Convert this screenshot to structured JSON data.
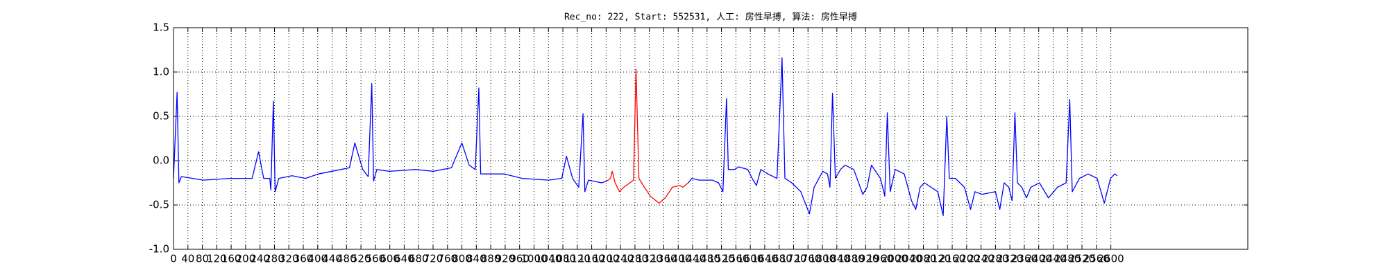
{
  "chart_data": {
    "type": "line",
    "title": "Rec_no: 222, Start: 552531, 人工: 房性早搏, 算法: 房性早搏",
    "xlim": [
      0,
      2980
    ],
    "ylim": [
      -1.0,
      1.5
    ],
    "xticks": [
      0,
      40,
      80,
      120,
      160,
      200,
      240,
      280,
      320,
      360,
      400,
      440,
      480,
      520,
      560,
      600,
      640,
      680,
      720,
      760,
      800,
      840,
      880,
      920,
      960,
      1000,
      1040,
      1080,
      1120,
      1160,
      1200,
      1240,
      1280,
      1320,
      1360,
      1400,
      1440,
      1480,
      1520,
      1560,
      1600,
      1640,
      1680,
      1720,
      1760,
      1800,
      1840,
      1880,
      1920,
      1960,
      2000,
      2040,
      2080,
      2120,
      2160,
      2200,
      2240,
      2280,
      2320,
      2360,
      2400,
      2440,
      2480,
      2520,
      2560,
      2600
    ],
    "yticks": [
      {
        "value": -1.0,
        "label": "-1.0"
      },
      -0.5,
      {
        "value": 0,
        "label": "0.0"
      },
      0.5,
      {
        "value": 1.0,
        "label": "1.0"
      },
      1.5
    ],
    "grid": true,
    "series": [
      {
        "color": "#0000ff",
        "x": [
          0,
          10,
          15,
          22,
          83,
          157,
          218,
          236,
          250,
          267,
          270,
          277,
          282,
          292,
          329,
          366,
          402,
          464,
          488,
          503,
          525,
          540,
          550,
          555,
          564,
          599,
          672,
          721,
          771,
          800,
          820,
          837,
          847,
          852,
          869,
          918,
          967,
          1040,
          1077,
          1090,
          1107,
          1124,
          1136,
          1141,
          1151,
          1188,
          1202,
          1300,
          1428,
          1438,
          1458,
          1495,
          1512,
          1524,
          1534,
          1539,
          1556,
          1568,
          1593,
          1605,
          1617,
          1629,
          1649,
          1674,
          1688,
          1696,
          1715,
          1740,
          1764,
          1777,
          1801,
          1814,
          1821,
          1828,
          1836,
          1850,
          1863,
          1887,
          1912,
          1924,
          1936,
          1961,
          1973,
          1980,
          1988,
          2002,
          2027,
          2047,
          2059,
          2071,
          2083,
          2120,
          2135,
          2145,
          2152,
          2169,
          2194,
          2211,
          2223,
          2243,
          2280,
          2292,
          2304,
          2317,
          2326,
          2334,
          2341,
          2353,
          2366,
          2378,
          2402,
          2427,
          2452,
          2476,
          2486,
          2493,
          2513,
          2537,
          2562,
          2582,
          2599,
          2611,
          2618
        ],
        "values": [
          -0.2,
          0.77,
          -0.25,
          -0.18,
          -0.22,
          -0.2,
          -0.2,
          0.1,
          -0.2,
          -0.2,
          -0.33,
          0.67,
          -0.35,
          -0.2,
          -0.17,
          -0.2,
          -0.15,
          -0.1,
          -0.08,
          0.2,
          -0.1,
          -0.18,
          0.87,
          -0.23,
          -0.1,
          -0.12,
          -0.1,
          -0.12,
          -0.08,
          0.2,
          -0.05,
          -0.1,
          0.82,
          -0.15,
          -0.15,
          -0.15,
          -0.2,
          -0.22,
          -0.2,
          0.05,
          -0.2,
          -0.3,
          0.53,
          -0.35,
          -0.22,
          -0.25,
          -0.23,
          null,
          -0.25,
          -0.2,
          -0.22,
          -0.22,
          -0.25,
          -0.35,
          0.7,
          -0.1,
          -0.1,
          -0.07,
          -0.1,
          -0.2,
          -0.28,
          -0.1,
          -0.15,
          -0.2,
          1.16,
          -0.2,
          -0.25,
          -0.35,
          -0.6,
          -0.3,
          -0.12,
          -0.15,
          -0.3,
          0.76,
          -0.2,
          -0.1,
          -0.05,
          -0.1,
          -0.38,
          -0.3,
          -0.05,
          -0.2,
          -0.4,
          0.54,
          -0.35,
          -0.1,
          -0.15,
          -0.45,
          -0.55,
          -0.3,
          -0.25,
          -0.35,
          -0.62,
          0.5,
          -0.2,
          -0.2,
          -0.3,
          -0.55,
          -0.35,
          -0.38,
          -0.35,
          -0.55,
          -0.25,
          -0.3,
          -0.45,
          0.54,
          -0.25,
          -0.3,
          -0.42,
          -0.3,
          -0.25,
          -0.42,
          -0.3,
          -0.25,
          0.69,
          -0.35,
          -0.2,
          -0.15,
          -0.2,
          -0.48,
          -0.2,
          -0.15,
          -0.17
        ]
      },
      {
        "color": "#ff0000",
        "x": [
          1202,
          1212,
          1217,
          1225,
          1237,
          1249,
          1266,
          1276,
          1283,
          1291,
          1306,
          1323,
          1347,
          1364,
          1384,
          1404,
          1413,
          1428
        ],
        "values": [
          -0.23,
          -0.2,
          -0.12,
          -0.25,
          -0.35,
          -0.3,
          -0.25,
          -0.22,
          1.03,
          -0.2,
          -0.3,
          -0.4,
          -0.48,
          -0.42,
          -0.3,
          -0.28,
          -0.3,
          -0.25
        ]
      }
    ]
  }
}
